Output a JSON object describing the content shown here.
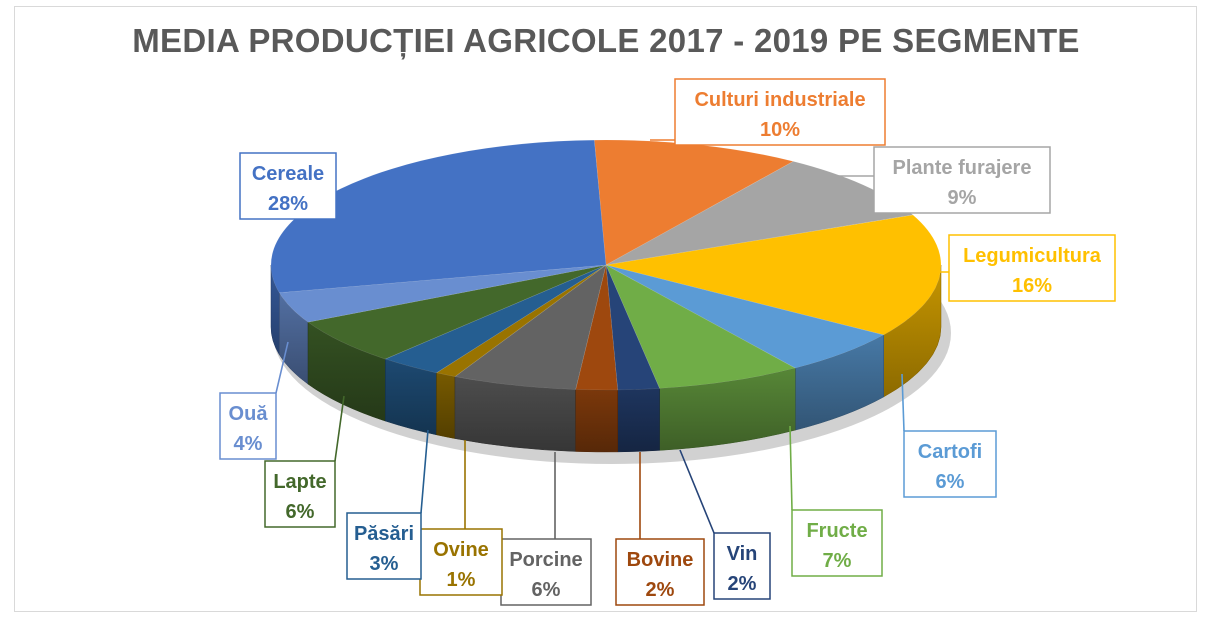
{
  "chart_data": {
    "type": "pie",
    "title": "MEDIA PRODUCȚIEI AGRICOLE 2017 - 2019 PE SEGMENTE",
    "slices": [
      {
        "name": "Culturi industriale",
        "value": 10,
        "label": "10%",
        "color": "#ED7D31"
      },
      {
        "name": "Plante furajere",
        "value": 9,
        "label": "9%",
        "color": "#A5A5A5"
      },
      {
        "name": "Legumicultura",
        "value": 16,
        "label": "16%",
        "color": "#FFC000"
      },
      {
        "name": "Cartofi",
        "value": 6,
        "label": "6%",
        "color": "#5B9BD5"
      },
      {
        "name": "Fructe",
        "value": 7,
        "label": "7%",
        "color": "#70AD47"
      },
      {
        "name": "Vin",
        "value": 2,
        "label": "2%",
        "color": "#264478"
      },
      {
        "name": "Bovine",
        "value": 2,
        "label": "2%",
        "color": "#9E480E"
      },
      {
        "name": "Porcine",
        "value": 6,
        "label": "6%",
        "color": "#636363"
      },
      {
        "name": "Ovine",
        "value": 1,
        "label": "1%",
        "color": "#997300"
      },
      {
        "name": "Păsări",
        "value": 3,
        "label": "3%",
        "color": "#255E91"
      },
      {
        "name": "Lapte",
        "value": 6,
        "label": "6%",
        "color": "#43682B"
      },
      {
        "name": "Ouă",
        "value": 4,
        "label": "4%",
        "color": "#698ED0"
      },
      {
        "name": "Cereale",
        "value": 28,
        "label": "28%",
        "color": "#4472C4"
      }
    ]
  }
}
